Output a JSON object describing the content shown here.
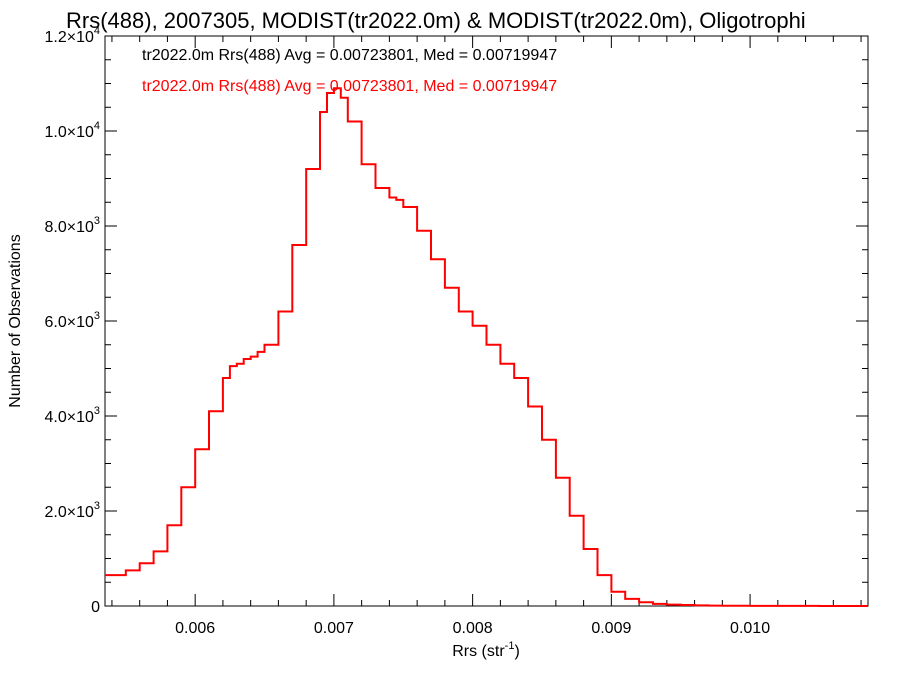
{
  "chart_data": {
    "type": "line",
    "style": "step-histogram",
    "title": "Rrs(488), 2007305, MODIST(tr2022.0m) & MODIST(tr2022.0m), Oligotrophi",
    "xlabel_base": "Rrs (str",
    "xlabel_sup": "-1",
    "xlabel_end": ")",
    "ylabel": "Number of Observations",
    "xlim": [
      0.00535,
      0.01085
    ],
    "ylim": [
      0,
      12000
    ],
    "x_ticks": [
      {
        "value": 0.006,
        "label": "0.006"
      },
      {
        "value": 0.007,
        "label": "0.007"
      },
      {
        "value": 0.008,
        "label": "0.008"
      },
      {
        "value": 0.009,
        "label": "0.009"
      },
      {
        "value": 0.01,
        "label": "0.010"
      }
    ],
    "y_ticks": [
      {
        "value": 0,
        "base": "0",
        "exp": ""
      },
      {
        "value": 2000,
        "base": "2.0×10",
        "exp": "3"
      },
      {
        "value": 4000,
        "base": "4.0×10",
        "exp": "3"
      },
      {
        "value": 6000,
        "base": "6.0×10",
        "exp": "3"
      },
      {
        "value": 8000,
        "base": "8.0×10",
        "exp": "3"
      },
      {
        "value": 10000,
        "base": "1.0×10",
        "exp": "4"
      },
      {
        "value": 12000,
        "base": "1.2×10",
        "exp": "4"
      }
    ],
    "annotations": [
      {
        "text": "tr2022.0m Rrs(488) Avg = 0.00723801, Med = 0.00719947",
        "color": "#000000"
      },
      {
        "text": "tr2022.0m Rrs(488) Avg = 0.00723801, Med = 0.00719947",
        "color": "#ff0000"
      }
    ],
    "series": [
      {
        "color": "#ff0000",
        "points": [
          [
            0.00535,
            650
          ],
          [
            0.0055,
            750
          ],
          [
            0.0056,
            900
          ],
          [
            0.0057,
            1150
          ],
          [
            0.0058,
            1700
          ],
          [
            0.0059,
            2500
          ],
          [
            0.006,
            3300
          ],
          [
            0.0061,
            4100
          ],
          [
            0.0062,
            4800
          ],
          [
            0.00625,
            5050
          ],
          [
            0.0063,
            5100
          ],
          [
            0.00635,
            5200
          ],
          [
            0.0064,
            5250
          ],
          [
            0.00645,
            5350
          ],
          [
            0.0065,
            5500
          ],
          [
            0.0066,
            6200
          ],
          [
            0.0067,
            7600
          ],
          [
            0.0068,
            9200
          ],
          [
            0.0069,
            10400
          ],
          [
            0.00695,
            10800
          ],
          [
            0.007,
            10900
          ],
          [
            0.00705,
            10700
          ],
          [
            0.0071,
            10200
          ],
          [
            0.0072,
            9300
          ],
          [
            0.0073,
            8800
          ],
          [
            0.0074,
            8600
          ],
          [
            0.00745,
            8550
          ],
          [
            0.0075,
            8400
          ],
          [
            0.0076,
            7900
          ],
          [
            0.0077,
            7300
          ],
          [
            0.0078,
            6700
          ],
          [
            0.0079,
            6200
          ],
          [
            0.008,
            5900
          ],
          [
            0.0081,
            5500
          ],
          [
            0.0082,
            5100
          ],
          [
            0.0083,
            4800
          ],
          [
            0.0084,
            4200
          ],
          [
            0.0085,
            3500
          ],
          [
            0.0086,
            2700
          ],
          [
            0.0087,
            1900
          ],
          [
            0.0088,
            1200
          ],
          [
            0.0089,
            650
          ],
          [
            0.009,
            300
          ],
          [
            0.0091,
            150
          ],
          [
            0.0092,
            80
          ],
          [
            0.0093,
            45
          ],
          [
            0.0094,
            30
          ],
          [
            0.0095,
            20
          ],
          [
            0.0096,
            12
          ],
          [
            0.0097,
            8
          ],
          [
            0.0098,
            5
          ],
          [
            0.01,
            3
          ],
          [
            0.0105,
            1
          ],
          [
            0.01085,
            0
          ]
        ]
      }
    ]
  }
}
